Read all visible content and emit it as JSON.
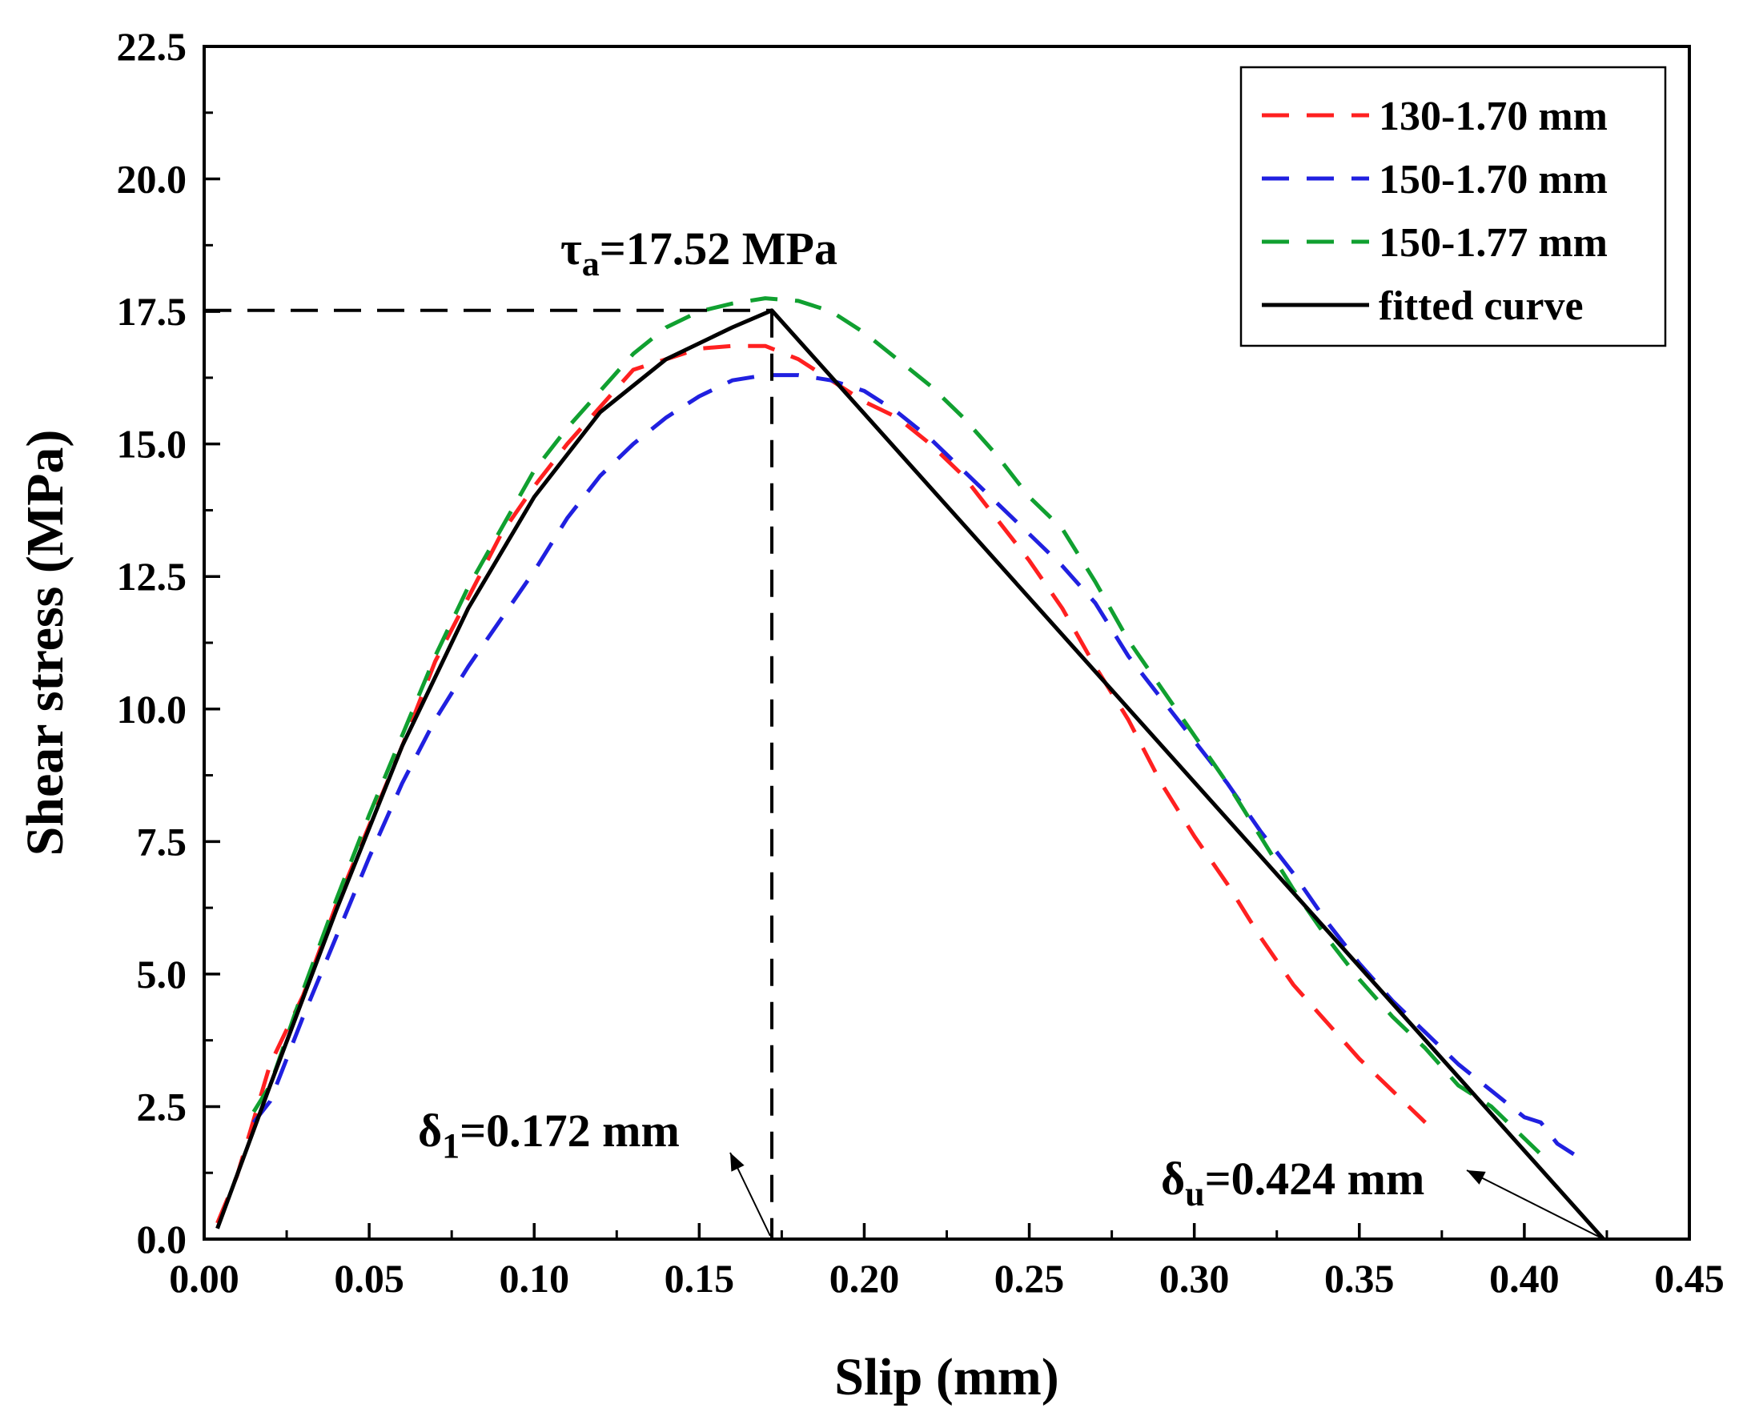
{
  "chart_data": {
    "type": "line",
    "title": "",
    "xlabel": "Slip (mm)",
    "ylabel": "Shear stress (MPa)",
    "xlim": [
      0.0,
      0.45
    ],
    "ylim": [
      0.0,
      22.5
    ],
    "xticks": [
      "0.00",
      "0.05",
      "0.10",
      "0.15",
      "0.20",
      "0.25",
      "0.30",
      "0.35",
      "0.40",
      "0.45"
    ],
    "yticks": [
      "0.0",
      "2.5",
      "5.0",
      "7.5",
      "10.0",
      "12.5",
      "15.0",
      "17.5",
      "20.0",
      "22.5"
    ],
    "grid": false,
    "legend_position": "top-right",
    "series": [
      {
        "name": "130-1.70 mm",
        "color": "#ff2020",
        "style": "dashed",
        "points": [
          [
            0.004,
            0.3
          ],
          [
            0.01,
            1.2
          ],
          [
            0.02,
            3.3
          ],
          [
            0.03,
            4.6
          ],
          [
            0.04,
            6.3
          ],
          [
            0.05,
            7.8
          ],
          [
            0.06,
            9.3
          ],
          [
            0.07,
            10.9
          ],
          [
            0.08,
            12.1
          ],
          [
            0.09,
            13.3
          ],
          [
            0.1,
            14.2
          ],
          [
            0.11,
            15.0
          ],
          [
            0.12,
            15.7
          ],
          [
            0.13,
            16.4
          ],
          [
            0.14,
            16.6
          ],
          [
            0.145,
            16.7
          ],
          [
            0.15,
            16.8
          ],
          [
            0.16,
            16.85
          ],
          [
            0.17,
            16.85
          ],
          [
            0.18,
            16.6
          ],
          [
            0.19,
            16.2
          ],
          [
            0.2,
            15.8
          ],
          [
            0.21,
            15.5
          ],
          [
            0.22,
            15.0
          ],
          [
            0.23,
            14.4
          ],
          [
            0.24,
            13.6
          ],
          [
            0.25,
            12.8
          ],
          [
            0.26,
            11.9
          ],
          [
            0.27,
            10.8
          ],
          [
            0.28,
            9.8
          ],
          [
            0.29,
            8.6
          ],
          [
            0.3,
            7.6
          ],
          [
            0.31,
            6.7
          ],
          [
            0.32,
            5.7
          ],
          [
            0.33,
            4.8
          ],
          [
            0.34,
            4.1
          ],
          [
            0.35,
            3.4
          ],
          [
            0.36,
            2.8
          ],
          [
            0.37,
            2.2
          ]
        ]
      },
      {
        "name": "150-1.70 mm",
        "color": "#2020e0",
        "style": "dashed",
        "points": [
          [
            0.015,
            2.2
          ],
          [
            0.02,
            2.6
          ],
          [
            0.03,
            4.2
          ],
          [
            0.04,
            5.7
          ],
          [
            0.05,
            7.2
          ],
          [
            0.06,
            8.6
          ],
          [
            0.07,
            9.8
          ],
          [
            0.08,
            10.8
          ],
          [
            0.09,
            11.7
          ],
          [
            0.1,
            12.6
          ],
          [
            0.11,
            13.6
          ],
          [
            0.12,
            14.4
          ],
          [
            0.13,
            15.0
          ],
          [
            0.14,
            15.5
          ],
          [
            0.15,
            15.9
          ],
          [
            0.16,
            16.2
          ],
          [
            0.17,
            16.3
          ],
          [
            0.18,
            16.3
          ],
          [
            0.19,
            16.2
          ],
          [
            0.2,
            16.0
          ],
          [
            0.21,
            15.6
          ],
          [
            0.22,
            15.1
          ],
          [
            0.23,
            14.5
          ],
          [
            0.24,
            13.9
          ],
          [
            0.25,
            13.3
          ],
          [
            0.26,
            12.7
          ],
          [
            0.27,
            12.0
          ],
          [
            0.28,
            11.0
          ],
          [
            0.29,
            10.2
          ],
          [
            0.3,
            9.4
          ],
          [
            0.31,
            8.6
          ],
          [
            0.32,
            7.7
          ],
          [
            0.33,
            6.9
          ],
          [
            0.34,
            6.0
          ],
          [
            0.35,
            5.2
          ],
          [
            0.36,
            4.5
          ],
          [
            0.37,
            3.9
          ],
          [
            0.38,
            3.3
          ],
          [
            0.39,
            2.8
          ],
          [
            0.4,
            2.3
          ],
          [
            0.405,
            2.2
          ],
          [
            0.41,
            1.8
          ],
          [
            0.415,
            1.6
          ]
        ]
      },
      {
        "name": "150-1.77 mm",
        "color": "#10a030",
        "style": "dashed",
        "points": [
          [
            0.015,
            2.4
          ],
          [
            0.02,
            2.9
          ],
          [
            0.03,
            4.7
          ],
          [
            0.04,
            6.4
          ],
          [
            0.05,
            8.0
          ],
          [
            0.06,
            9.5
          ],
          [
            0.07,
            11.0
          ],
          [
            0.08,
            12.3
          ],
          [
            0.09,
            13.4
          ],
          [
            0.1,
            14.5
          ],
          [
            0.11,
            15.3
          ],
          [
            0.12,
            16.0
          ],
          [
            0.13,
            16.7
          ],
          [
            0.14,
            17.2
          ],
          [
            0.15,
            17.5
          ],
          [
            0.16,
            17.65
          ],
          [
            0.17,
            17.75
          ],
          [
            0.18,
            17.7
          ],
          [
            0.19,
            17.5
          ],
          [
            0.2,
            17.1
          ],
          [
            0.21,
            16.6
          ],
          [
            0.22,
            16.1
          ],
          [
            0.23,
            15.5
          ],
          [
            0.24,
            14.8
          ],
          [
            0.25,
            14.0
          ],
          [
            0.26,
            13.4
          ],
          [
            0.27,
            12.4
          ],
          [
            0.28,
            11.3
          ],
          [
            0.29,
            10.4
          ],
          [
            0.3,
            9.5
          ],
          [
            0.31,
            8.6
          ],
          [
            0.32,
            7.6
          ],
          [
            0.33,
            6.6
          ],
          [
            0.34,
            5.7
          ],
          [
            0.35,
            4.9
          ],
          [
            0.36,
            4.2
          ],
          [
            0.37,
            3.6
          ],
          [
            0.38,
            2.9
          ],
          [
            0.39,
            2.5
          ],
          [
            0.4,
            1.9
          ],
          [
            0.405,
            1.6
          ]
        ]
      },
      {
        "name": "fitted curve",
        "color": "#000000",
        "style": "solid",
        "points": [
          [
            0.004,
            0.2
          ],
          [
            0.02,
            2.9
          ],
          [
            0.04,
            6.2
          ],
          [
            0.06,
            9.3
          ],
          [
            0.08,
            11.9
          ],
          [
            0.1,
            14.0
          ],
          [
            0.12,
            15.6
          ],
          [
            0.14,
            16.6
          ],
          [
            0.16,
            17.2
          ],
          [
            0.172,
            17.52
          ],
          [
            0.424,
            0.0
          ]
        ]
      }
    ],
    "annotations": {
      "peak_stress": "τa=17.52 MPa",
      "peak_slip": "δ1=0.172 mm",
      "ultimate_slip": "δu=0.424 mm"
    },
    "key_points": {
      "peak": [
        0.172,
        17.52
      ],
      "ultimate": [
        0.424,
        0.0
      ]
    }
  }
}
